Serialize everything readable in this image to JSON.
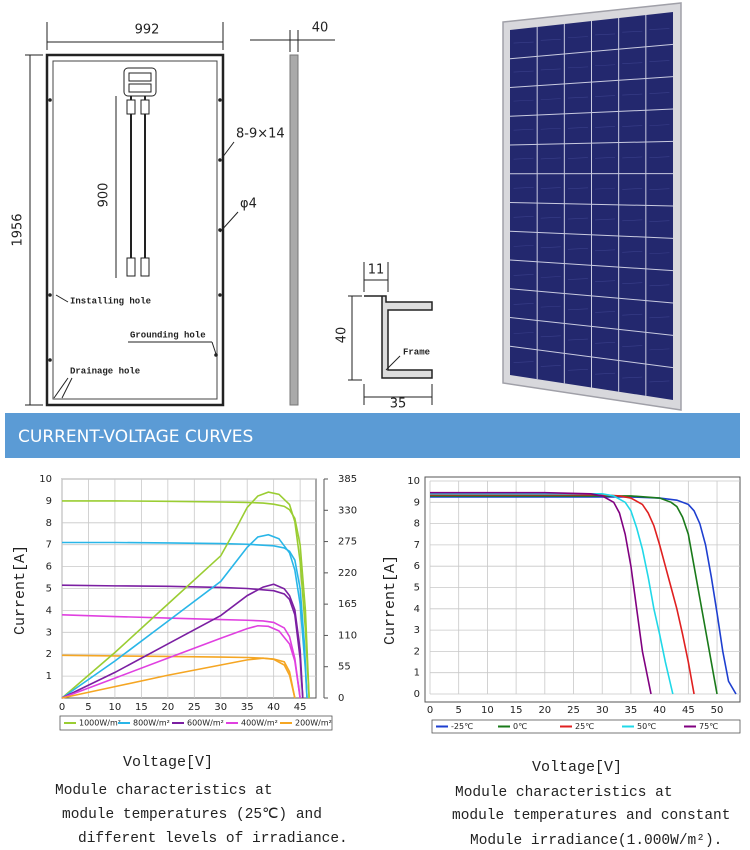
{
  "drawing": {
    "width": 992,
    "thickness": 40,
    "height": 1956,
    "cable": 900,
    "mounting_hole": "8-9×14",
    "hole": "φ4",
    "installing_hole": "Installing hole",
    "grounding_hole": "Grounding hole",
    "drainage_hole": "Drainage hole",
    "frame_lip": 11,
    "frame_height": 40,
    "frame_label": "Frame",
    "frame_width": 35
  },
  "banner": "CURRENT-VOLTAGE CURVES",
  "chart_data": [
    {
      "type": "line",
      "xlabel": "Voltage[V]",
      "ylabel": "Current[A]",
      "xlim": [
        0,
        48
      ],
      "xticks": [
        0,
        5,
        10,
        15,
        20,
        25,
        30,
        35,
        40,
        45
      ],
      "ylim": [
        0,
        10
      ],
      "yticks": [
        1,
        2,
        3,
        4,
        5,
        6,
        7,
        8,
        9,
        10
      ],
      "y2lim": [
        0,
        385
      ],
      "y2ticks": [
        0,
        55,
        110,
        165,
        220,
        275,
        330,
        385
      ],
      "grid": true,
      "series": [
        {
          "name": "1000W/m²",
          "color": "#9acd32",
          "x": [
            0,
            10,
            20,
            30,
            35,
            38,
            40,
            42,
            43,
            44,
            45,
            46,
            46.7
          ],
          "values": [
            9.0,
            9.0,
            8.98,
            8.95,
            8.93,
            8.9,
            8.85,
            8.75,
            8.6,
            8.2,
            7,
            4,
            0
          ]
        },
        {
          "name": "800W/m²",
          "color": "#29b6e8",
          "x": [
            0,
            10,
            20,
            30,
            35,
            40,
            42,
            43,
            44,
            45,
            45.8,
            46.3
          ],
          "values": [
            7.1,
            7.1,
            7.08,
            7.05,
            7.02,
            6.95,
            6.85,
            6.7,
            6.3,
            5,
            2.5,
            0
          ]
        },
        {
          "name": "600W/m²",
          "color": "#7b1fa2",
          "x": [
            0,
            10,
            20,
            30,
            35,
            40,
            42,
            43,
            44,
            45,
            45.5
          ],
          "values": [
            5.15,
            5.12,
            5.1,
            5.05,
            5.0,
            4.9,
            4.75,
            4.5,
            3.8,
            1.8,
            0
          ]
        },
        {
          "name": "400W/m²",
          "color": "#e040e0",
          "x": [
            0,
            10,
            20,
            30,
            35,
            38,
            40,
            42,
            43,
            44,
            44.5,
            45
          ],
          "values": [
            3.8,
            3.72,
            3.65,
            3.58,
            3.55,
            3.52,
            3.45,
            3.2,
            2.8,
            1.8,
            0.9,
            0
          ]
        },
        {
          "name": "200W/m²",
          "color": "#f5a623",
          "x": [
            0,
            10,
            20,
            30,
            35,
            38,
            40,
            42,
            43,
            43.5,
            44
          ],
          "values": [
            1.95,
            1.92,
            1.9,
            1.87,
            1.85,
            1.82,
            1.78,
            1.65,
            1.2,
            0.6,
            0
          ]
        },
        {
          "axis": "y2",
          "color": "#9acd32",
          "x": [
            0,
            10,
            20,
            30,
            33,
            35,
            37,
            39,
            41,
            43,
            44,
            45,
            46,
            46.7
          ],
          "values": [
            0,
            80,
            165,
            250,
            300,
            335,
            355,
            362,
            358,
            340,
            310,
            240,
            120,
            0
          ]
        },
        {
          "axis": "y2",
          "color": "#29b6e8",
          "x": [
            0,
            10,
            20,
            30,
            35,
            37,
            39,
            41,
            43,
            44,
            45,
            46,
            46.3
          ],
          "values": [
            0,
            65,
            135,
            205,
            265,
            283,
            287,
            280,
            255,
            225,
            165,
            50,
            0
          ]
        },
        {
          "axis": "y2",
          "color": "#7b1fa2",
          "x": [
            0,
            10,
            20,
            30,
            35,
            38,
            40,
            42,
            43,
            44,
            45,
            45.5
          ],
          "values": [
            0,
            45,
            95,
            145,
            180,
            195,
            200,
            192,
            180,
            155,
            85,
            0
          ]
        },
        {
          "axis": "y2",
          "color": "#e040e0",
          "x": [
            0,
            10,
            20,
            30,
            35,
            37,
            39,
            41,
            43,
            44,
            45
          ],
          "values": [
            0,
            35,
            70,
            105,
            122,
            127,
            126,
            118,
            95,
            65,
            0
          ]
        },
        {
          "axis": "y2",
          "color": "#f5a623",
          "x": [
            0,
            10,
            20,
            30,
            35,
            38,
            40,
            42,
            43,
            44
          ],
          "values": [
            0,
            20,
            40,
            58,
            67,
            70,
            68,
            58,
            40,
            0
          ]
        }
      ],
      "caption": [
        "Module characteristics at",
        "module temperatures (25℃) and",
        "different levels of irradiance."
      ]
    },
    {
      "type": "line",
      "xlabel": "Voltage[V]",
      "ylabel": "Current[A]",
      "xlim": [
        0,
        54
      ],
      "xticks": [
        0,
        5,
        10,
        15,
        20,
        25,
        30,
        35,
        40,
        45,
        50
      ],
      "ylim": [
        0,
        10
      ],
      "yticks": [
        0,
        1,
        2,
        3,
        4,
        5,
        6,
        7,
        8,
        9,
        10
      ],
      "grid": true,
      "series": [
        {
          "name": "-25℃",
          "color": "#1e3fd0",
          "x": [
            0,
            10,
            20,
            30,
            35,
            40,
            43,
            45,
            46,
            47,
            48,
            49,
            50,
            51,
            52,
            53.3
          ],
          "values": [
            9.25,
            9.25,
            9.25,
            9.25,
            9.25,
            9.2,
            9.1,
            8.9,
            8.6,
            8,
            7,
            5.5,
            3.8,
            2,
            0.6,
            0
          ]
        },
        {
          "name": "0℃",
          "color": "#1a7a1a",
          "x": [
            0,
            10,
            20,
            30,
            35,
            40,
            42,
            43,
            44,
            45,
            46,
            47,
            48,
            49,
            50
          ],
          "values": [
            9.3,
            9.3,
            9.3,
            9.3,
            9.3,
            9.2,
            9.0,
            8.8,
            8.3,
            7.5,
            6,
            4.5,
            3,
            1.5,
            0
          ]
        },
        {
          "name": "25℃",
          "color": "#e02020",
          "x": [
            0,
            10,
            20,
            30,
            33,
            35,
            37,
            38,
            39,
            40,
            41,
            42,
            43,
            44,
            45,
            46
          ],
          "values": [
            9.35,
            9.35,
            9.35,
            9.35,
            9.3,
            9.2,
            8.9,
            8.5,
            7.9,
            7,
            6,
            5,
            4,
            2.8,
            1.5,
            0
          ]
        },
        {
          "name": "50℃",
          "color": "#20d8e8",
          "x": [
            0,
            10,
            20,
            30,
            32,
            34,
            35,
            36,
            37,
            38,
            39,
            40,
            41,
            42.3
          ],
          "values": [
            9.4,
            9.4,
            9.4,
            9.4,
            9.3,
            9.0,
            8.6,
            7.8,
            6.8,
            5.5,
            4,
            2.8,
            1.5,
            0
          ]
        },
        {
          "name": "75℃",
          "color": "#800080",
          "x": [
            0,
            10,
            20,
            28,
            30,
            32,
            33,
            34,
            35,
            36,
            37,
            38.5
          ],
          "values": [
            9.45,
            9.45,
            9.45,
            9.4,
            9.3,
            9.0,
            8.5,
            7.5,
            6,
            4,
            2,
            0
          ]
        }
      ],
      "caption": [
        "Module characteristics at",
        "module temperatures and constant",
        "Module irradiance(1.000W/m²)."
      ]
    }
  ]
}
